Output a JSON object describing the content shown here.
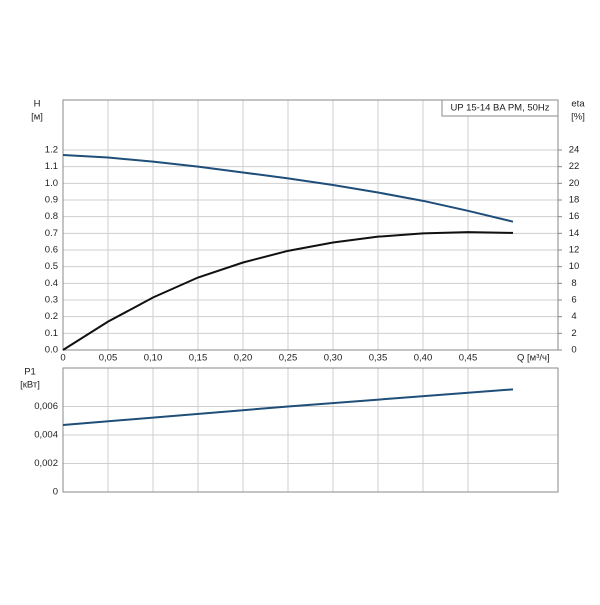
{
  "chart_data": [
    {
      "type": "line",
      "annotation": "UP 15-14 BA PM, 50Hz",
      "y_label": "H",
      "y_unit": "[м]",
      "y2_label": "eta",
      "y2_unit": "[%]",
      "x_label": "Q [м³/ч]",
      "x": [
        0,
        0.05,
        0.1,
        0.15,
        0.2,
        0.25,
        0.3,
        0.35,
        0.4,
        0.45,
        0.5
      ],
      "series": [
        {
          "color": "#1f4e79",
          "axis": "y",
          "values": [
            1.17,
            1.155,
            1.13,
            1.1,
            1.065,
            1.03,
            0.99,
            0.945,
            0.895,
            0.835,
            0.77
          ]
        },
        {
          "color": "#111111",
          "axis": "y2",
          "values": [
            0,
            3.4,
            6.3,
            8.7,
            10.5,
            11.9,
            12.9,
            13.6,
            14.0,
            14.15,
            14.05
          ]
        }
      ],
      "xlim": [
        0,
        0.55
      ],
      "xticks": [
        0,
        {
          "value": 0.05,
          "label": "0,05"
        },
        {
          "value": 0.1,
          "label": "0,10"
        },
        {
          "value": 0.15,
          "label": "0,15"
        },
        {
          "value": 0.2,
          "label": "0,20"
        },
        {
          "value": 0.25,
          "label": "0,25"
        },
        {
          "value": 0.3,
          "label": "0,30"
        },
        {
          "value": 0.35,
          "label": "0,35"
        },
        {
          "value": 0.4,
          "label": "0,40"
        },
        {
          "value": 0.45,
          "label": "0,45"
        }
      ],
      "ylim": [
        0,
        1.5
      ],
      "yticks": [
        {
          "value": 0,
          "label": "0.0"
        },
        0.1,
        0.2,
        0.3,
        0.4,
        0.5,
        0.6,
        0.7,
        0.8,
        0.9,
        {
          "value": 1,
          "label": "1.0"
        },
        1.1,
        1.2
      ],
      "y2lim": [
        0,
        30
      ],
      "y2ticks": [
        0,
        2,
        4,
        6,
        8,
        10,
        12,
        14,
        16,
        18,
        20,
        22,
        24
      ],
      "grid": true
    },
    {
      "type": "line",
      "y_label": "P1",
      "y_unit": "[кВт]",
      "x": [
        0,
        0.25,
        0.5
      ],
      "series": [
        {
          "color": "#1f4e79",
          "axis": "y",
          "values": [
            0.0047,
            0.006,
            0.0072
          ]
        }
      ],
      "xlim": [
        0,
        0.55
      ],
      "xticks": [
        0,
        0.05,
        0.1,
        0.15,
        0.2,
        0.25,
        0.3,
        0.35,
        0.4,
        0.45
      ],
      "ylim": [
        0,
        0.0087
      ],
      "yticks": [
        0,
        {
          "value": 0.002,
          "label": "0,002"
        },
        {
          "value": 0.004,
          "label": "0,004"
        },
        {
          "value": 0.006,
          "label": "0,006"
        }
      ],
      "grid": true
    }
  ]
}
